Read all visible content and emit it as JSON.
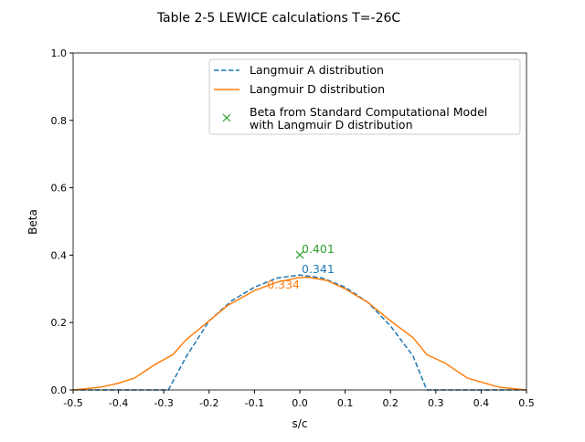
{
  "chart_data": {
    "type": "line",
    "title": "Table 2-5 LEWICE calculations T=-26C",
    "xlabel": "s/c",
    "ylabel": "Beta",
    "xlim": [
      -0.5,
      0.5
    ],
    "ylim": [
      0,
      1.0
    ],
    "xticks": [
      "-0.5",
      "-0.4",
      "-0.3",
      "-0.2",
      "-0.1",
      "0.0",
      "0.1",
      "0.2",
      "0.3",
      "0.4",
      "0.5"
    ],
    "yticks": [
      "0.0",
      "0.2",
      "0.4",
      "0.6",
      "0.8",
      "1.0"
    ],
    "grid": false,
    "legend_position": "top-right",
    "series": [
      {
        "name": "Langmuir A distribution",
        "color": "#1f77b4",
        "style": "dashed",
        "x": [
          -0.5,
          -0.29,
          -0.25,
          -0.2,
          -0.15,
          -0.1,
          -0.05,
          0,
          0.05,
          0.1,
          0.15,
          0.2,
          0.25,
          0.28,
          0.5
        ],
        "y": [
          0,
          0,
          0.1,
          0.205,
          0.265,
          0.305,
          0.332,
          0.341,
          0.332,
          0.305,
          0.26,
          0.19,
          0.1,
          0,
          0
        ]
      },
      {
        "name": "Langmuir D distribution",
        "color": "#ff7f0e",
        "style": "solid",
        "x": [
          -0.5,
          -0.44,
          -0.4,
          -0.365,
          -0.32,
          -0.28,
          -0.25,
          -0.2,
          -0.16,
          -0.1,
          -0.05,
          0,
          0.02,
          0.06,
          0.1,
          0.15,
          0.2,
          0.25,
          0.28,
          0.32,
          0.37,
          0.44,
          0.5
        ],
        "y": [
          0,
          0.008,
          0.02,
          0.035,
          0.075,
          0.105,
          0.15,
          0.205,
          0.25,
          0.295,
          0.32,
          0.334,
          0.334,
          0.325,
          0.3,
          0.26,
          0.205,
          0.155,
          0.105,
          0.08,
          0.035,
          0.008,
          0
        ]
      },
      {
        "name": "Beta from Standard Computational Model\nwith Langmuir D distribution",
        "color": "#2ca02c",
        "style": "marker-x",
        "x": [
          0
        ],
        "y": [
          0.401
        ]
      }
    ],
    "annotations": [
      {
        "text": "0.401",
        "x": 0,
        "y": 0.401,
        "color": "#2ca02c"
      },
      {
        "text": "0.341",
        "x": 0,
        "y": 0.341,
        "color": "#1f77b4"
      },
      {
        "text": "0.334",
        "x": 0,
        "y": 0.334,
        "color": "#ff7f0e"
      }
    ]
  }
}
